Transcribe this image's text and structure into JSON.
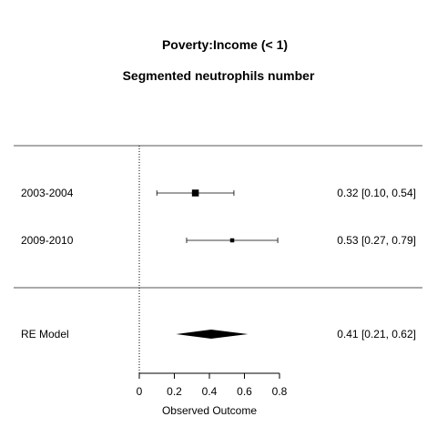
{
  "chart_data": {
    "type": "forest",
    "title": "Poverty:Income (< 1)",
    "subtitle": "Segmented neutrophils number",
    "xlabel": "Observed Outcome",
    "xlim": [
      0,
      0.8
    ],
    "xticks": [
      0,
      0.2,
      0.4,
      0.6,
      0.8
    ],
    "xtick_labels": [
      "0",
      "0.2",
      "0.4",
      "0.6",
      "0.8"
    ],
    "reference_line": 0,
    "studies": [
      {
        "label": "2003-2004",
        "estimate": 0.32,
        "ci_low": 0.1,
        "ci_high": 0.54,
        "text": "0.32 [0.10, 0.54]",
        "weight": 0.75
      },
      {
        "label": "2009-2010",
        "estimate": 0.53,
        "ci_low": 0.27,
        "ci_high": 0.79,
        "text": "0.53 [0.27, 0.79]",
        "weight": 0.25
      }
    ],
    "summary": {
      "label": "RE Model",
      "estimate": 0.41,
      "ci_low": 0.21,
      "ci_high": 0.62,
      "text": "0.41 [0.21, 0.62]"
    }
  }
}
